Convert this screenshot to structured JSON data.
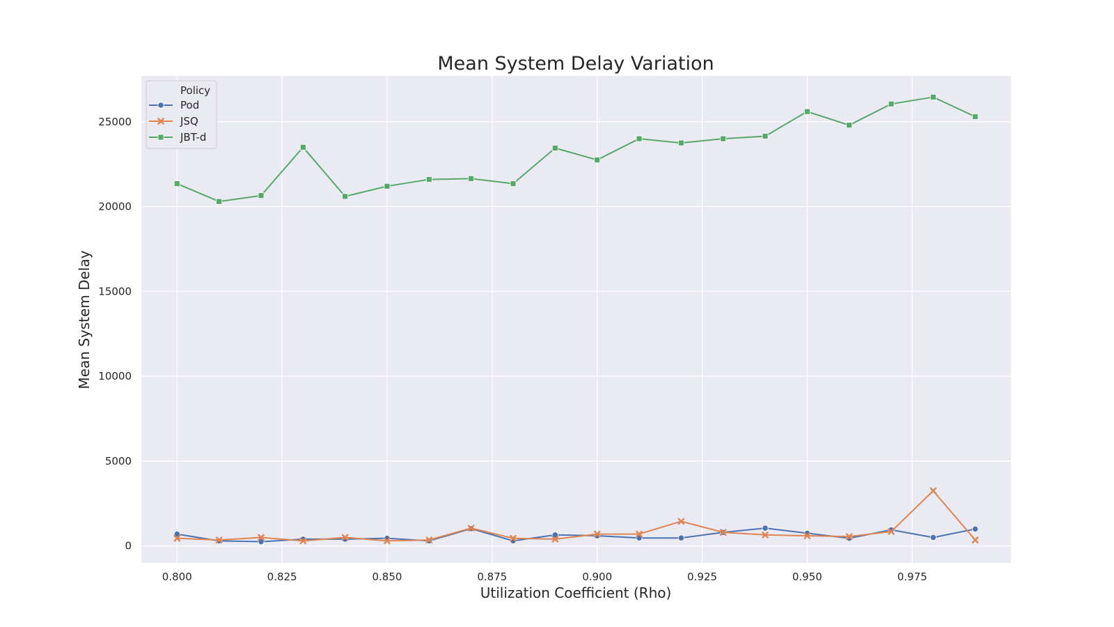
{
  "chart_data": {
    "type": "line",
    "title": "Mean System Delay Variation",
    "xlabel": "Utilization Coefficient (Rho)",
    "ylabel": "Mean System Delay",
    "x": [
      0.8,
      0.81,
      0.82,
      0.83,
      0.84,
      0.85,
      0.86,
      0.87,
      0.88,
      0.89,
      0.9,
      0.91,
      0.92,
      0.93,
      0.94,
      0.95,
      0.96,
      0.97,
      0.98,
      0.99
    ],
    "xlim": [
      0.7915,
      0.9985
    ],
    "ylim": [
      -1000,
      27700
    ],
    "xticks": [
      "0.800",
      "0.825",
      "0.850",
      "0.875",
      "0.900",
      "0.925",
      "0.950",
      "0.975"
    ],
    "xtick_values": [
      0.8,
      0.825,
      0.85,
      0.875,
      0.9,
      0.925,
      0.95,
      0.975
    ],
    "yticks": [
      "0",
      "5000",
      "10000",
      "15000",
      "20000",
      "25000"
    ],
    "ytick_values": [
      0,
      5000,
      10000,
      15000,
      20000,
      25000
    ],
    "grid": true,
    "legend": {
      "title": "Policy",
      "placement": "top-left"
    },
    "series": [
      {
        "name": "Pod",
        "color": "#4c72b0",
        "marker": "circle",
        "values": [
          700,
          300,
          250,
          400,
          400,
          450,
          300,
          1020,
          300,
          650,
          600,
          470,
          470,
          800,
          1050,
          750,
          450,
          950,
          500,
          1000
        ]
      },
      {
        "name": "JSQ",
        "color": "#dd8452",
        "marker": "x",
        "values": [
          450,
          350,
          500,
          300,
          500,
          300,
          350,
          1050,
          450,
          400,
          700,
          700,
          1450,
          800,
          650,
          600,
          550,
          850,
          3250,
          350
        ]
      },
      {
        "name": "JBT-d",
        "color": "#55a868",
        "marker": "square",
        "values": [
          21350,
          20300,
          20650,
          23500,
          20600,
          21200,
          21600,
          21650,
          21350,
          23450,
          22750,
          24000,
          23750,
          24000,
          24150,
          25600,
          24800,
          26050,
          26450,
          25300
        ]
      }
    ]
  }
}
